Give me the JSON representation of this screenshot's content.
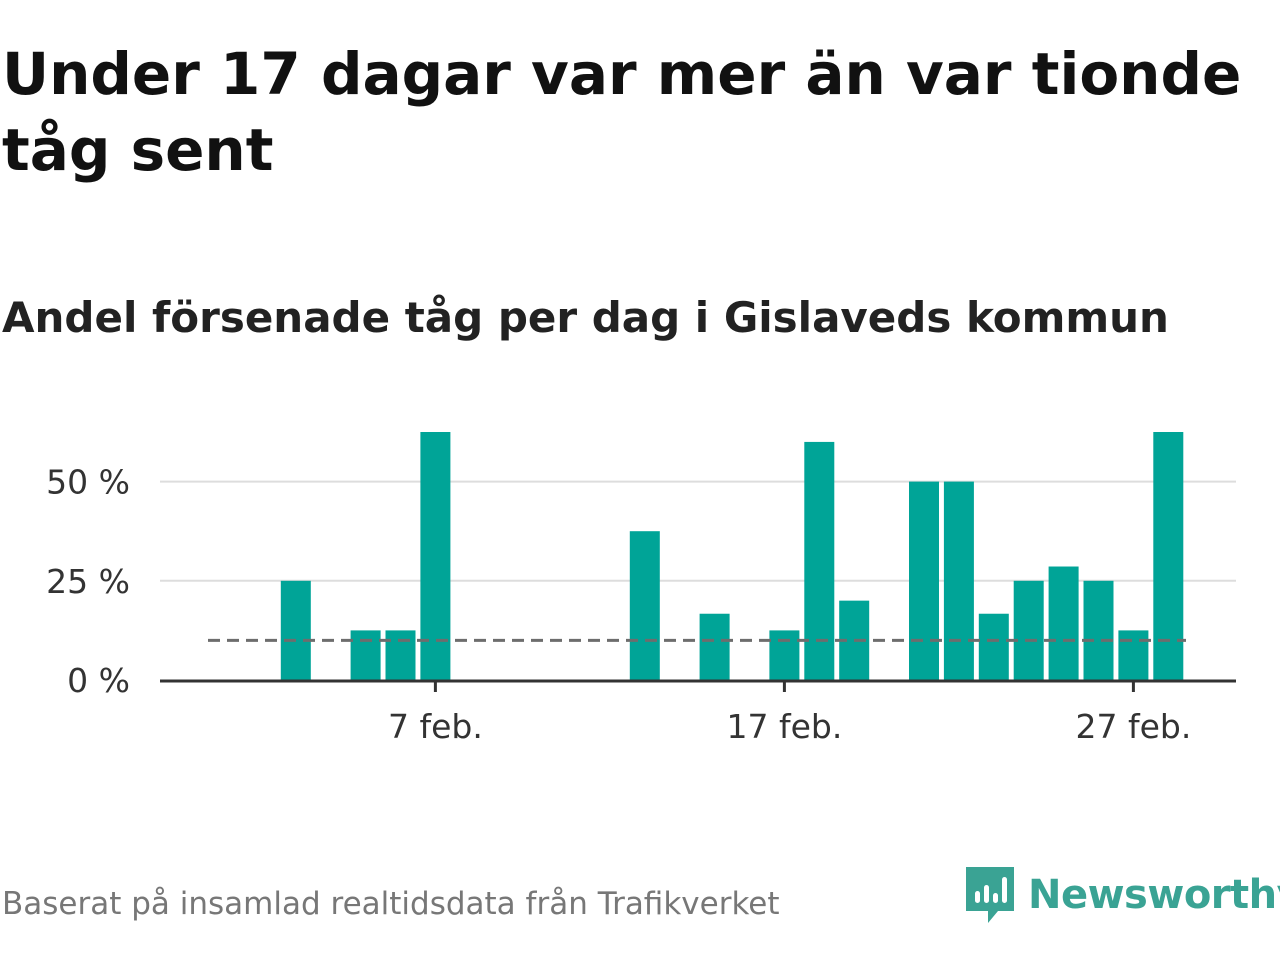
{
  "title": "Under 17 dagar var mer än var tionde tåg sent",
  "subtitle": "Andel försenade tåg per dag i Gislaveds kommun",
  "source": "Baserat på insamlad realtidsdata från Trafikverket",
  "brand": {
    "name": "Newsworthy",
    "icon": "newsworthy-logo-icon",
    "color": "#3aa394"
  },
  "chart_data": {
    "type": "bar",
    "x": [
      "2019-02-01",
      "2019-02-02",
      "2019-02-03",
      "2019-02-04",
      "2019-02-05",
      "2019-02-06",
      "2019-02-07",
      "2019-02-08",
      "2019-02-09",
      "2019-02-10",
      "2019-02-11",
      "2019-02-12",
      "2019-02-13",
      "2019-02-14",
      "2019-02-15",
      "2019-02-16",
      "2019-02-17",
      "2019-02-18",
      "2019-02-19",
      "2019-02-20",
      "2019-02-21",
      "2019-02-22",
      "2019-02-23",
      "2019-02-24",
      "2019-02-25",
      "2019-02-26",
      "2019-02-27",
      "2019-02-28"
    ],
    "values": [
      0,
      0,
      25,
      0,
      12.5,
      12.5,
      62.5,
      0,
      0,
      0,
      0,
      0,
      37.5,
      0,
      16.7,
      0,
      12.5,
      60,
      20,
      0,
      50,
      50,
      16.7,
      25,
      28.6,
      25,
      12.5,
      62.5
    ],
    "reference_line": 10,
    "yticks": [
      0,
      25,
      50
    ],
    "ytick_labels": [
      "0 %",
      "25 %",
      "50 %"
    ],
    "xtick_values": [
      "2019-02-07",
      "2019-02-17",
      "2019-02-27"
    ],
    "xtick_labels": [
      "7 feb.",
      "17 feb.",
      "27 feb."
    ],
    "ylim": [
      0,
      62.5
    ],
    "bar_color": "#00a497",
    "reference_color": "#6d6d6d",
    "grid_color": "#dddddd",
    "grid": true
  }
}
